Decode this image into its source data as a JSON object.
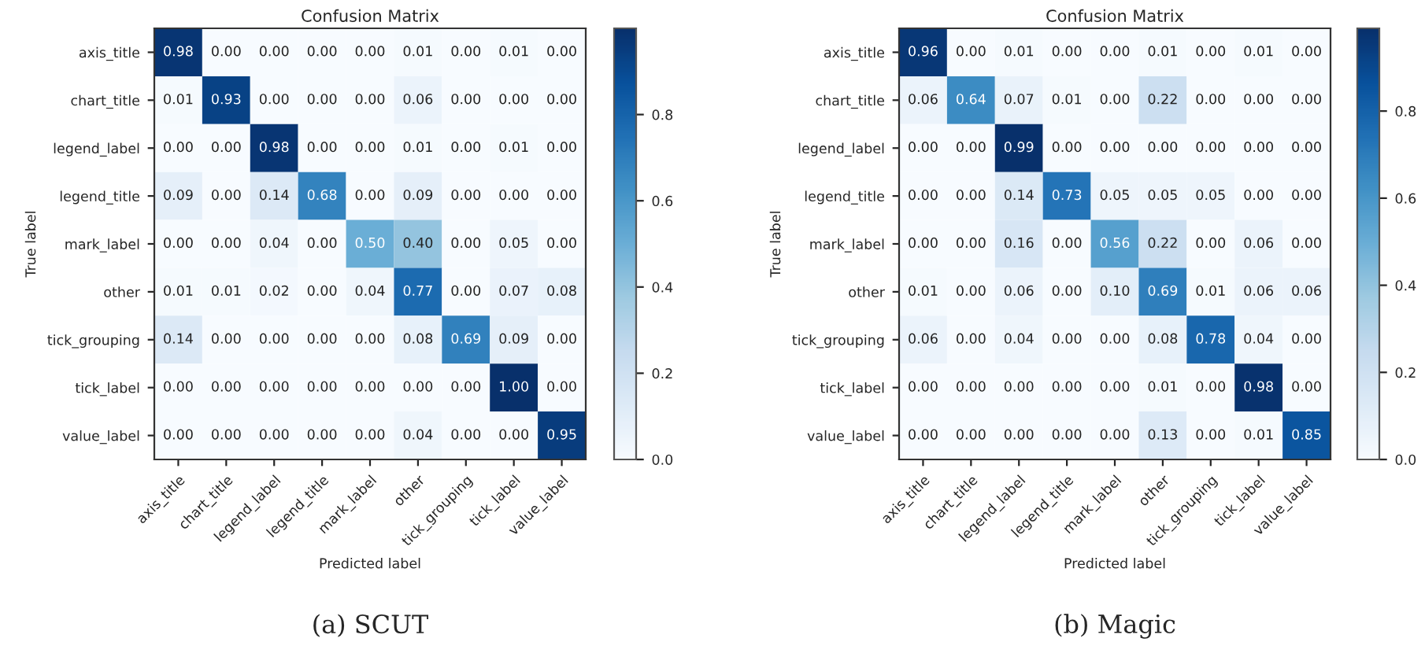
{
  "chart_data": [
    {
      "type": "heatmap",
      "title": "Confusion Matrix",
      "xlabel": "Predicted label",
      "ylabel": "True label",
      "annotations": [
        "(a) SCUT"
      ],
      "categories": [
        "axis_title",
        "chart_title",
        "legend_label",
        "legend_title",
        "mark_label",
        "other",
        "tick_grouping",
        "tick_label",
        "value_label"
      ],
      "y_categories": [
        "axis_title",
        "chart_title",
        "legend_label",
        "legend_title",
        "mark_label",
        "other",
        "tick_grouping",
        "tick_label",
        "value_label"
      ],
      "cells": [
        [
          0.98,
          0.0,
          0.0,
          0.0,
          0.0,
          0.01,
          0.0,
          0.01,
          0.0
        ],
        [
          0.01,
          0.93,
          0.0,
          0.0,
          0.0,
          0.06,
          0.0,
          0.0,
          0.0
        ],
        [
          0.0,
          0.0,
          0.98,
          0.0,
          0.0,
          0.01,
          0.0,
          0.01,
          0.0
        ],
        [
          0.09,
          0.0,
          0.14,
          0.68,
          0.0,
          0.09,
          0.0,
          0.0,
          0.0
        ],
        [
          0.0,
          0.0,
          0.04,
          0.0,
          0.5,
          0.4,
          0.0,
          0.05,
          0.0
        ],
        [
          0.01,
          0.01,
          0.02,
          0.0,
          0.04,
          0.77,
          0.0,
          0.07,
          0.08
        ],
        [
          0.14,
          0.0,
          0.0,
          0.0,
          0.0,
          0.08,
          0.69,
          0.09,
          0.0
        ],
        [
          0.0,
          0.0,
          0.0,
          0.0,
          0.0,
          0.0,
          0.0,
          1.0,
          0.0
        ],
        [
          0.0,
          0.0,
          0.0,
          0.0,
          0.0,
          0.04,
          0.0,
          0.0,
          0.95
        ]
      ],
      "cell_labels": [
        [
          "0.98",
          "0.00",
          "0.00",
          "0.00",
          "0.00",
          "0.01",
          "0.00",
          "0.01",
          "0.00"
        ],
        [
          "0.01",
          "0.93",
          "0.00",
          "0.00",
          "0.00",
          "0.06",
          "0.00",
          "0.00",
          "0.00"
        ],
        [
          "0.00",
          "0.00",
          "0.98",
          "0.00",
          "0.00",
          "0.01",
          "0.00",
          "0.01",
          "0.00"
        ],
        [
          "0.09",
          "0.00",
          "0.14",
          "0.68",
          "0.00",
          "0.09",
          "0.00",
          "0.00",
          "0.00"
        ],
        [
          "0.00",
          "0.00",
          "0.04",
          "0.00",
          "0.50",
          "0.40",
          "0.00",
          "0.05",
          "0.00"
        ],
        [
          "0.01",
          "0.01",
          "0.02",
          "0.00",
          "0.04",
          "0.77",
          "0.00",
          "0.07",
          "0.08"
        ],
        [
          "0.14",
          "0.00",
          "0.00",
          "0.00",
          "0.00",
          "0.08",
          "0.69",
          "0.09",
          "0.00"
        ],
        [
          "0.00",
          "0.00",
          "0.00",
          "0.00",
          "0.00",
          "0.00",
          "0.00",
          "1.00",
          "0.00"
        ],
        [
          "0.00",
          "0.00",
          "0.00",
          "0.00",
          "0.00",
          "0.04",
          "0.00",
          "0.00",
          "0.95"
        ]
      ],
      "clim": [
        0,
        1
      ],
      "cticks": [
        {
          "value": 0,
          "label": "0.0"
        },
        {
          "value": 0.2,
          "label": "0.2"
        },
        {
          "value": 0.4,
          "label": "0.4"
        },
        {
          "value": 0.6,
          "label": "0.6"
        },
        {
          "value": 0.8,
          "label": "0.8"
        }
      ],
      "data_labels": true
    },
    {
      "type": "heatmap",
      "title": "Confusion Matrix",
      "xlabel": "Predicted label",
      "ylabel": "True label",
      "annotations": [
        "(b) Magic"
      ],
      "categories": [
        "axis_title",
        "chart_title",
        "legend_label",
        "legend_title",
        "mark_label",
        "other",
        "tick_grouping",
        "tick_label",
        "value_label"
      ],
      "y_categories": [
        "axis_title",
        "chart_title",
        "legend_label",
        "legend_title",
        "mark_label",
        "other",
        "tick_grouping",
        "tick_label",
        "value_label"
      ],
      "cells": [
        [
          0.96,
          0.0,
          0.01,
          0.0,
          0.0,
          0.01,
          0.0,
          0.01,
          0.0
        ],
        [
          0.06,
          0.64,
          0.07,
          0.01,
          0.0,
          0.22,
          0.0,
          0.0,
          0.0
        ],
        [
          0.0,
          0.0,
          0.99,
          0.0,
          0.0,
          0.0,
          0.0,
          0.0,
          0.0
        ],
        [
          0.0,
          0.0,
          0.14,
          0.73,
          0.05,
          0.05,
          0.05,
          0.0,
          0.0
        ],
        [
          0.0,
          0.0,
          0.16,
          0.0,
          0.56,
          0.22,
          0.0,
          0.06,
          0.0
        ],
        [
          0.01,
          0.0,
          0.06,
          0.0,
          0.1,
          0.69,
          0.01,
          0.06,
          0.06
        ],
        [
          0.06,
          0.0,
          0.04,
          0.0,
          0.0,
          0.08,
          0.78,
          0.04,
          0.0
        ],
        [
          0.0,
          0.0,
          0.0,
          0.0,
          0.0,
          0.01,
          0.0,
          0.98,
          0.0
        ],
        [
          0.0,
          0.0,
          0.0,
          0.0,
          0.0,
          0.13,
          0.0,
          0.01,
          0.85
        ]
      ],
      "cell_labels": [
        [
          "0.96",
          "0.00",
          "0.01",
          "0.00",
          "0.00",
          "0.01",
          "0.00",
          "0.01",
          "0.00"
        ],
        [
          "0.06",
          "0.64",
          "0.07",
          "0.01",
          "0.00",
          "0.22",
          "0.00",
          "0.00",
          "0.00"
        ],
        [
          "0.00",
          "0.00",
          "0.99",
          "0.00",
          "0.00",
          "0.00",
          "0.00",
          "0.00",
          "0.00"
        ],
        [
          "0.00",
          "0.00",
          "0.14",
          "0.73",
          "0.05",
          "0.05",
          "0.05",
          "0.00",
          "0.00"
        ],
        [
          "0.00",
          "0.00",
          "0.16",
          "0.00",
          "0.56",
          "0.22",
          "0.00",
          "0.06",
          "0.00"
        ],
        [
          "0.01",
          "0.00",
          "0.06",
          "0.00",
          "0.10",
          "0.69",
          "0.01",
          "0.06",
          "0.06"
        ],
        [
          "0.06",
          "0.00",
          "0.04",
          "0.00",
          "0.00",
          "0.08",
          "0.78",
          "0.04",
          "0.00"
        ],
        [
          "0.00",
          "0.00",
          "0.00",
          "0.00",
          "0.00",
          "0.01",
          "0.00",
          "0.98",
          "0.00"
        ],
        [
          "0.00",
          "0.00",
          "0.00",
          "0.00",
          "0.00",
          "0.13",
          "0.00",
          "0.01",
          "0.85"
        ]
      ],
      "clim": [
        0,
        0.99
      ],
      "cticks": [
        {
          "value": 0,
          "label": "0.0"
        },
        {
          "value": 0.2,
          "label": "0.2"
        },
        {
          "value": 0.4,
          "label": "0.4"
        },
        {
          "value": 0.6,
          "label": "0.6"
        },
        {
          "value": 0.8,
          "label": "0.8"
        }
      ],
      "data_labels": true
    }
  ]
}
